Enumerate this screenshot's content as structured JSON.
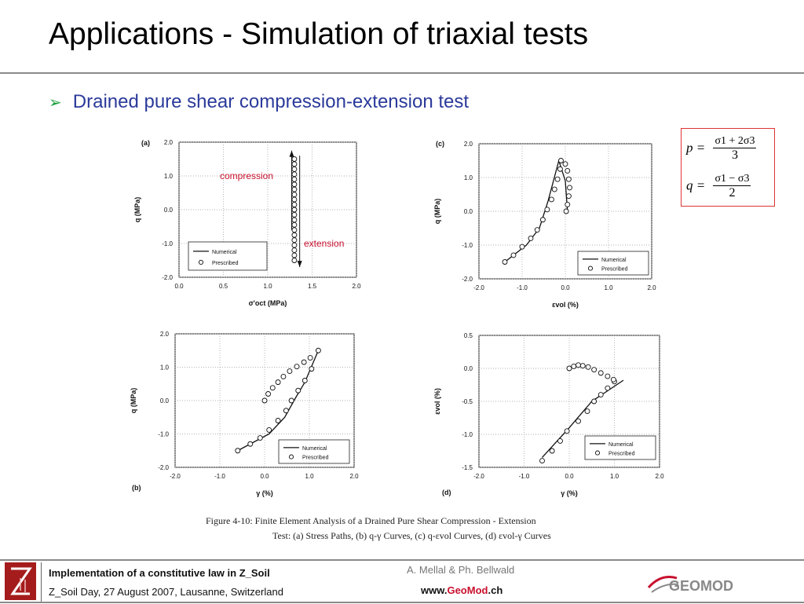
{
  "slide": {
    "title": "Applications - Simulation of triaxial tests",
    "bullet": "Drained pure shear compression-extension test"
  },
  "equations": {
    "p_lhs": "p =",
    "p_num": "σ1 + 2σ3",
    "p_den": "3",
    "q_lhs": "q =",
    "q_num": "σ1 − σ3",
    "q_den": "2"
  },
  "annotations": {
    "compression": "compression",
    "extension": "extension"
  },
  "figure": {
    "caption_line1": "Figure 4-10:  Finite Element Analysis of a Drained Pure Shear Compression - Extension",
    "caption_line2": "Test:  (a) Stress Paths, (b) q-γ Curves, (c) q-εvol Curves, (d) εvol-γ Curves",
    "legend_numerical": "Numerical",
    "legend_prescribed": "Prescribed"
  },
  "chart_data": [
    {
      "type": "scatter",
      "panel": "(a)",
      "xlabel": "σ'oct (MPa)",
      "ylabel": "q (MPa)",
      "xlim": [
        0.0,
        2.0
      ],
      "ylim": [
        -2.0,
        2.0
      ],
      "xticks": [
        "0.0",
        "0.5",
        "1.0",
        "1.5",
        "2.0"
      ],
      "yticks": [
        "2.0",
        "1.0",
        "0.0",
        "-1.0",
        "-2.0"
      ],
      "prescribed": [
        [
          1.3,
          1.5
        ],
        [
          1.3,
          1.35
        ],
        [
          1.3,
          1.2
        ],
        [
          1.3,
          1.05
        ],
        [
          1.3,
          0.9
        ],
        [
          1.3,
          0.75
        ],
        [
          1.3,
          0.6
        ],
        [
          1.3,
          0.45
        ],
        [
          1.3,
          0.3
        ],
        [
          1.3,
          0.15
        ],
        [
          1.3,
          0.0
        ],
        [
          1.3,
          -0.15
        ],
        [
          1.3,
          -0.3
        ],
        [
          1.3,
          -0.45
        ],
        [
          1.3,
          -0.6
        ],
        [
          1.3,
          -0.75
        ],
        [
          1.3,
          -0.9
        ],
        [
          1.3,
          -1.05
        ],
        [
          1.3,
          -1.2
        ],
        [
          1.3,
          -1.35
        ],
        [
          1.3,
          -1.5
        ]
      ],
      "numerical": [
        [
          1.3,
          1.5
        ],
        [
          1.3,
          -1.5
        ]
      ]
    },
    {
      "type": "scatter",
      "panel": "(b)",
      "xlabel": "γ (%)",
      "ylabel": "q (MPa)",
      "xlim": [
        -2.0,
        2.0
      ],
      "ylim": [
        -2.0,
        2.0
      ],
      "xticks": [
        "-2.0",
        "-1.0",
        "0.0",
        "1.0",
        "2.0"
      ],
      "yticks": [
        "2.0",
        "1.0",
        "0.0",
        "-1.0",
        "-2.0"
      ],
      "prescribed": [
        [
          -0.6,
          -1.5
        ],
        [
          -0.32,
          -1.3
        ],
        [
          -0.1,
          -1.12
        ],
        [
          0.1,
          -0.88
        ],
        [
          0.3,
          -0.6
        ],
        [
          0.48,
          -0.3
        ],
        [
          0.6,
          0.0
        ],
        [
          0.75,
          0.3
        ],
        [
          0.9,
          0.6
        ],
        [
          1.05,
          0.95
        ],
        [
          1.2,
          1.5
        ],
        [
          0.0,
          0.0
        ],
        [
          0.08,
          0.2
        ],
        [
          0.18,
          0.38
        ],
        [
          0.3,
          0.55
        ],
        [
          0.42,
          0.72
        ],
        [
          0.56,
          0.88
        ],
        [
          0.72,
          1.02
        ],
        [
          0.88,
          1.15
        ],
        [
          1.02,
          1.28
        ]
      ],
      "numerical": [
        [
          -0.6,
          -1.5
        ],
        [
          0.1,
          -1.0
        ],
        [
          0.45,
          -0.5
        ],
        [
          0.7,
          0.1
        ],
        [
          0.9,
          0.55
        ],
        [
          1.2,
          1.5
        ]
      ]
    },
    {
      "type": "scatter",
      "panel": "(c)",
      "xlabel": "εvol (%)",
      "ylabel": "q (MPa)",
      "xlim": [
        -2.0,
        2.0
      ],
      "ylim": [
        -2.0,
        2.0
      ],
      "xticks": [
        "-2.0",
        "-1.0",
        "0.0",
        "1.0",
        "2.0"
      ],
      "yticks": [
        "2.0",
        "1.0",
        "0.0",
        "-1.0",
        "-2.0"
      ],
      "prescribed": [
        [
          -1.4,
          -1.5
        ],
        [
          -1.2,
          -1.3
        ],
        [
          -1.0,
          -1.05
        ],
        [
          -0.8,
          -0.8
        ],
        [
          -0.65,
          -0.55
        ],
        [
          -0.52,
          -0.25
        ],
        [
          -0.42,
          0.05
        ],
        [
          -0.32,
          0.35
        ],
        [
          -0.25,
          0.65
        ],
        [
          -0.18,
          0.95
        ],
        [
          -0.12,
          1.25
        ],
        [
          -0.1,
          1.5
        ],
        [
          0.0,
          1.4
        ],
        [
          0.05,
          1.2
        ],
        [
          0.08,
          0.95
        ],
        [
          0.1,
          0.7
        ],
        [
          0.08,
          0.45
        ],
        [
          0.05,
          0.2
        ],
        [
          0.02,
          0.0
        ]
      ],
      "numerical": [
        [
          -1.4,
          -1.5
        ],
        [
          -0.9,
          -1.0
        ],
        [
          -0.6,
          -0.5
        ],
        [
          -0.4,
          0.3
        ],
        [
          -0.15,
          1.5
        ],
        [
          0.0,
          0.9
        ],
        [
          0.05,
          0.0
        ]
      ]
    },
    {
      "type": "scatter",
      "panel": "(d)",
      "xlabel": "γ (%)",
      "ylabel": "εvol (%)",
      "xlim": [
        -2.0,
        2.0
      ],
      "ylim": [
        -1.5,
        0.5
      ],
      "xticks": [
        "-2.0",
        "-1.0",
        "0.0",
        "1.0",
        "2.0"
      ],
      "yticks": [
        "0.5",
        "0.0",
        "-0.5",
        "-1.0",
        "-1.5"
      ],
      "prescribed": [
        [
          -0.6,
          -1.4
        ],
        [
          -0.38,
          -1.25
        ],
        [
          -0.2,
          -1.1
        ],
        [
          -0.05,
          -0.95
        ],
        [
          0.2,
          -0.8
        ],
        [
          0.4,
          -0.65
        ],
        [
          0.55,
          -0.5
        ],
        [
          0.7,
          -0.4
        ],
        [
          0.85,
          -0.3
        ],
        [
          1.0,
          -0.2
        ],
        [
          0.0,
          0.0
        ],
        [
          0.1,
          0.03
        ],
        [
          0.2,
          0.05
        ],
        [
          0.3,
          0.04
        ],
        [
          0.42,
          0.02
        ],
        [
          0.55,
          -0.02
        ],
        [
          0.7,
          -0.07
        ],
        [
          0.85,
          -0.12
        ],
        [
          0.98,
          -0.17
        ]
      ],
      "numerical": [
        [
          -0.6,
          -1.35
        ],
        [
          0.0,
          -0.9
        ],
        [
          0.5,
          -0.5
        ],
        [
          1.2,
          -0.18
        ]
      ]
    }
  ],
  "footer": {
    "line1": "Implementation of a constitutive law in Z_Soil",
    "line2": "Z_Soil Day, 27 August 2007, Lausanne, Switzerland",
    "authors": "A. Mellal & Ph. Bellwald",
    "www_prefix": "www.",
    "www_geo": "Geo",
    "www_mod": "Mod",
    "www_suffix": ".ch",
    "logo_text": "GEOMOD"
  }
}
